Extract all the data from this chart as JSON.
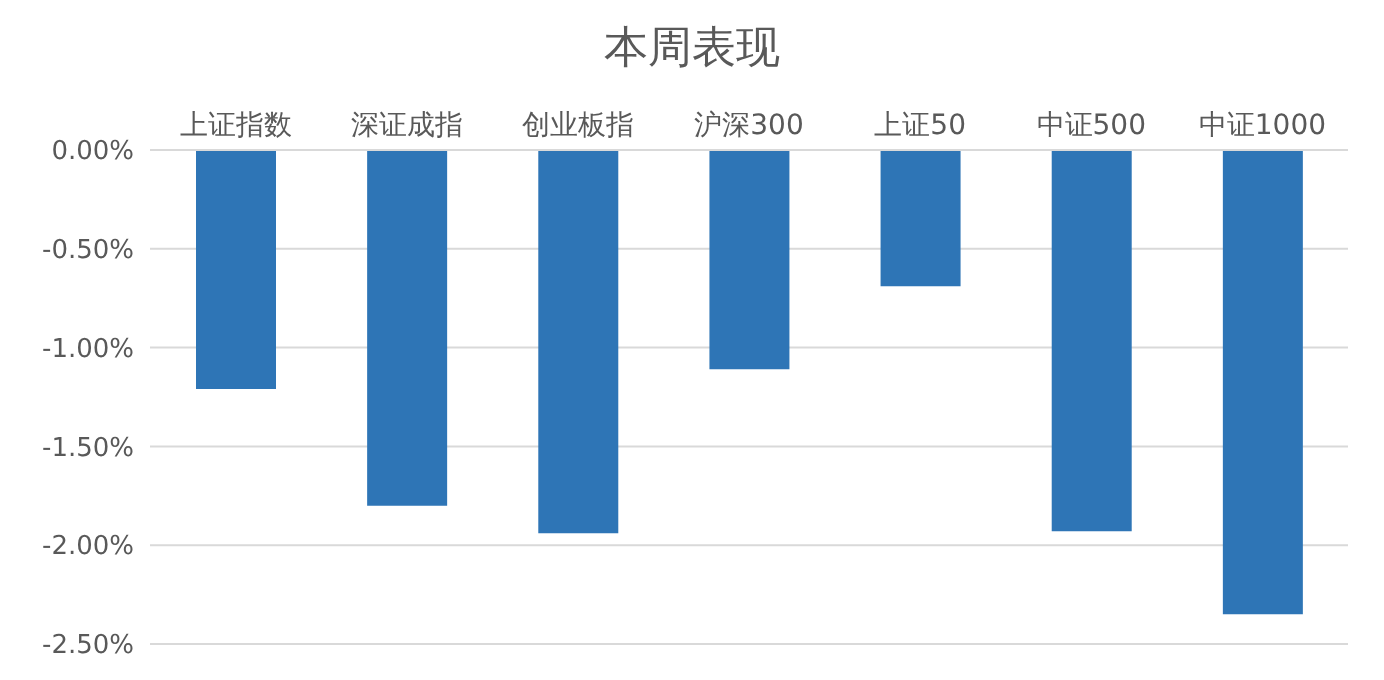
{
  "chart_data": {
    "type": "bar",
    "title": "本周表现",
    "categories": [
      "上证指数",
      "深证成指",
      "创业板指",
      "沪深300",
      "上证50",
      "中证500",
      "中证1000"
    ],
    "values": [
      -1.21,
      -1.8,
      -1.94,
      -1.11,
      -0.69,
      -1.93,
      -2.35
    ],
    "color": "#2e75b6",
    "ylim": [
      -2.5,
      0
    ],
    "yticks": [
      {
        "value": 0,
        "label": "0.00%"
      },
      {
        "value": -0.5,
        "label": "-0.50%"
      },
      {
        "value": -1,
        "label": "-1.00%"
      },
      {
        "value": -1.5,
        "label": "-1.50%"
      },
      {
        "value": -2,
        "label": "-2.00%"
      },
      {
        "value": -2.5,
        "label": "-2.50%"
      }
    ],
    "grid": "y"
  }
}
